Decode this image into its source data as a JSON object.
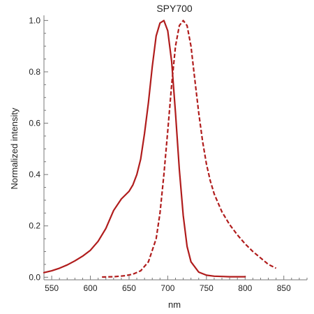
{
  "chart_data": {
    "type": "line",
    "title": "SPY700",
    "xlabel": "nm",
    "ylabel": "Normalized  intensity",
    "xlim": [
      540,
      880
    ],
    "ylim": [
      -0.01,
      1.02
    ],
    "xticks": [
      550,
      600,
      650,
      700,
      750,
      800,
      850
    ],
    "yticks": [
      0.0,
      0.2,
      0.4,
      0.6,
      0.8,
      1.0
    ],
    "ytick_labels": [
      "0.0",
      "0.2",
      "0.4",
      "0.6",
      "0.8",
      "1.0"
    ],
    "grid": false,
    "legend": "none",
    "color": "#b01c1c",
    "series": [
      {
        "style": "solid",
        "x": [
          540,
          550,
          560,
          570,
          580,
          590,
          600,
          610,
          620,
          630,
          640,
          650,
          655,
          660,
          665,
          670,
          675,
          680,
          685,
          690,
          695,
          700,
          705,
          710,
          715,
          720,
          725,
          730,
          740,
          750,
          760,
          770,
          780,
          790,
          800
        ],
        "y": [
          0.018,
          0.025,
          0.035,
          0.048,
          0.064,
          0.082,
          0.105,
          0.14,
          0.19,
          0.26,
          0.305,
          0.335,
          0.36,
          0.4,
          0.46,
          0.56,
          0.68,
          0.82,
          0.94,
          0.99,
          1.0,
          0.96,
          0.84,
          0.64,
          0.42,
          0.24,
          0.12,
          0.06,
          0.02,
          0.008,
          0.004,
          0.003,
          0.002,
          0.002,
          0.002
        ]
      },
      {
        "style": "dashed",
        "x": [
          615,
          630,
          645,
          655,
          665,
          675,
          685,
          690,
          695,
          700,
          705,
          710,
          715,
          720,
          725,
          730,
          735,
          740,
          745,
          750,
          755,
          760,
          770,
          780,
          790,
          800,
          810,
          820,
          830,
          840
        ],
        "y": [
          0.001,
          0.002,
          0.006,
          0.012,
          0.025,
          0.06,
          0.15,
          0.25,
          0.4,
          0.57,
          0.75,
          0.9,
          0.98,
          1.0,
          0.98,
          0.9,
          0.77,
          0.64,
          0.53,
          0.44,
          0.375,
          0.325,
          0.255,
          0.205,
          0.165,
          0.13,
          0.1,
          0.075,
          0.05,
          0.035
        ]
      }
    ]
  }
}
